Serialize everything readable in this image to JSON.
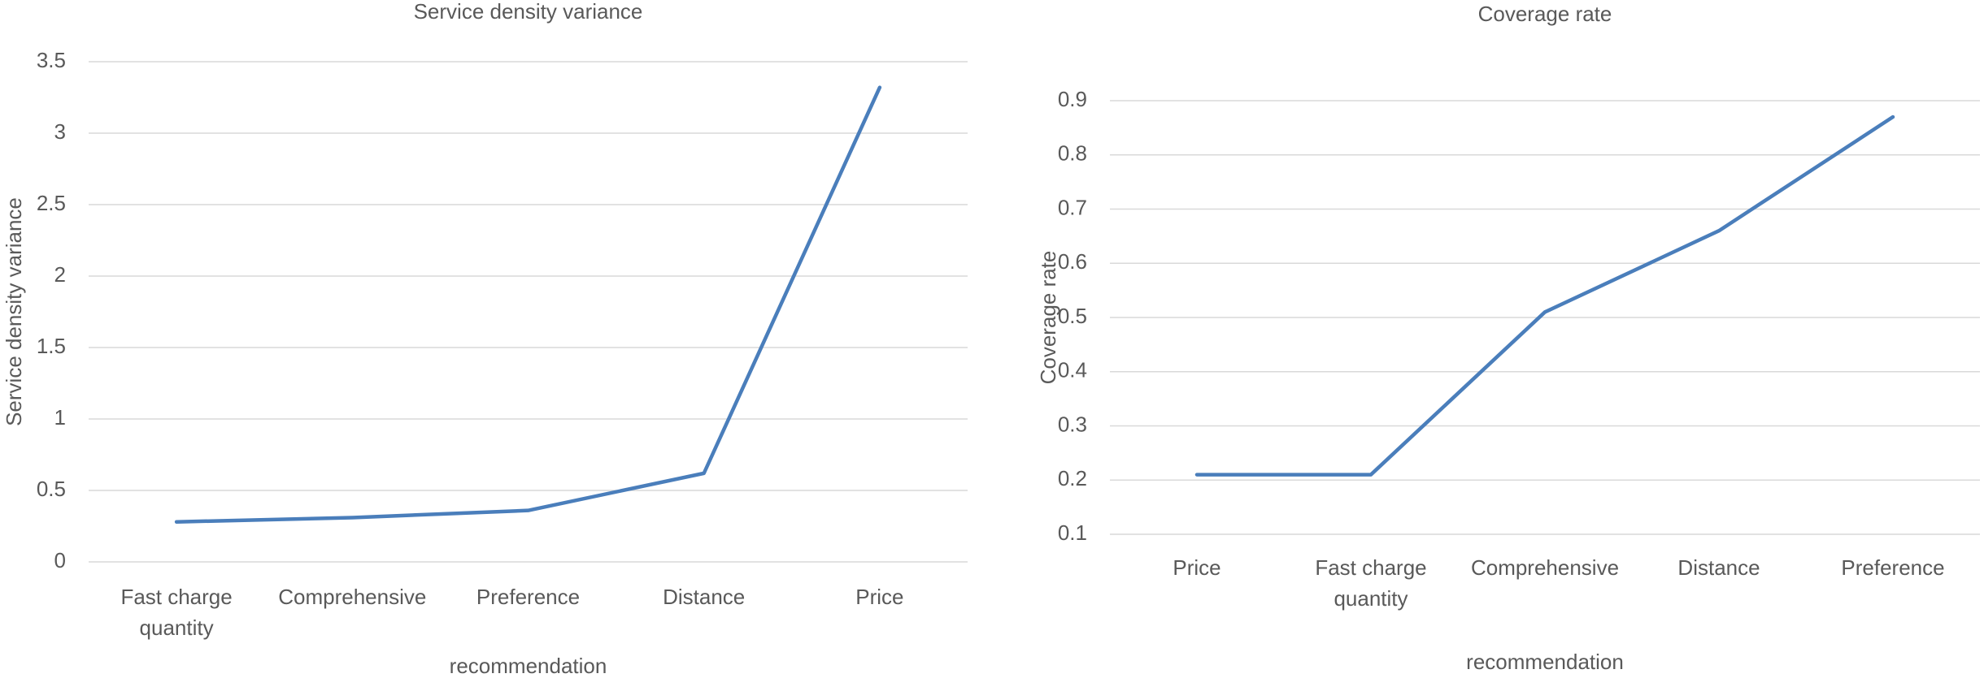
{
  "chart_data": [
    {
      "type": "line",
      "title": "Service density variance",
      "x_label": "recommendation",
      "y_label": "Service density variance",
      "categories": [
        "Fast charge quantity",
        "Comprehensive",
        "Preference",
        "Distance",
        "Price"
      ],
      "values": [
        0.28,
        0.31,
        0.36,
        0.62,
        3.32
      ],
      "color": "#4a7ebb",
      "ylim": [
        0,
        3.5
      ],
      "yticks": [
        0,
        0.5,
        1,
        1.5,
        2,
        2.5,
        3,
        3.5
      ],
      "grid": true
    },
    {
      "type": "line",
      "title": "Coverage rate",
      "x_label": "recommendation",
      "y_label": "Coverage rate",
      "categories": [
        "Price",
        "Fast charge quantity",
        "Comprehensive",
        "Distance",
        "Preference"
      ],
      "values": [
        0.21,
        0.21,
        0.51,
        0.66,
        0.87
      ],
      "color": "#4a7ebb",
      "ylim": [
        0.1,
        0.9
      ],
      "yticks": [
        0.1,
        0.2,
        0.3,
        0.4,
        0.5,
        0.6,
        0.7,
        0.8,
        0.9
      ],
      "grid": true
    }
  ]
}
